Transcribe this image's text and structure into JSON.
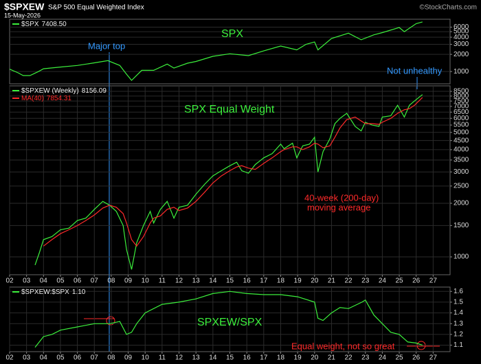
{
  "header": {
    "symbol": "$SPXEW",
    "name": "S&P 500 Equal Weighted Index",
    "date": "15-May-2026",
    "source": "©StockCharts.com"
  },
  "chart_data": [
    {
      "type": "line",
      "title": "SPX",
      "annotations": [
        "Major top",
        "Not unhealthy"
      ],
      "log_scale": true,
      "grid": true,
      "xlim": [
        2002,
        2028
      ],
      "ylim": [
        610,
        8250
      ],
      "yticks": [
        1000,
        2000,
        3000,
        4000,
        5000,
        6000
      ],
      "x": [
        2002,
        2002.5,
        2002.8,
        2003.2,
        2003.7,
        2004,
        2005,
        2006,
        2007,
        2007.8,
        2008.5,
        2008.9,
        2009.2,
        2009.8,
        2010.5,
        2011.3,
        2011.7,
        2012.5,
        2013,
        2014,
        2015,
        2016.1,
        2017,
        2018,
        2018.95,
        2019.5,
        2020,
        2020.2,
        2021,
        2022,
        2022.75,
        2023.5,
        2024,
        2025,
        2025.3,
        2026,
        2026.37
      ],
      "series": [
        {
          "name": "$SPX",
          "color": "#3cf03c",
          "values": [
            1100,
            950,
            850,
            850,
            1000,
            1120,
            1200,
            1280,
            1420,
            1550,
            1280,
            900,
            700,
            1050,
            1050,
            1350,
            1150,
            1400,
            1500,
            1850,
            2050,
            1900,
            2300,
            2800,
            2400,
            3000,
            3300,
            2400,
            3800,
            4700,
            3600,
            4400,
            4800,
            5900,
            5000,
            6900,
            7408.5
          ],
          "value_labels": [
            null,
            null,
            null,
            null,
            null,
            null,
            null,
            null,
            null,
            null,
            null,
            null,
            null,
            null,
            null,
            null,
            null,
            null,
            null,
            null,
            null,
            null,
            null,
            null,
            null,
            null,
            null,
            null,
            null,
            null,
            null,
            null,
            null,
            null,
            null,
            null,
            "7408.50"
          ]
        }
      ]
    },
    {
      "type": "line",
      "title": "SPX Equal Weight",
      "annotations": [
        "40-week (200-day)",
        "moving average"
      ],
      "log_scale": true,
      "grid": true,
      "xlim": [
        2002,
        2028
      ],
      "ylim": [
        794,
        9130
      ],
      "yticks": [
        1000,
        1500,
        2000,
        2500,
        3000,
        3500,
        4000,
        4500,
        5000,
        5500,
        6000,
        6500,
        7000,
        7500,
        8000,
        8500
      ],
      "xticks": [
        {
          "value": 2002,
          "label": "02"
        },
        {
          "value": 2003,
          "label": "03"
        },
        {
          "value": 2004,
          "label": "04"
        },
        {
          "value": 2005,
          "label": "05"
        },
        {
          "value": 2006,
          "label": "06"
        },
        {
          "value": 2007,
          "label": "07"
        },
        {
          "value": 2008,
          "label": "08"
        },
        {
          "value": 2009,
          "label": "09"
        },
        {
          "value": 2010,
          "label": "10"
        },
        {
          "value": 2011,
          "label": "11"
        },
        {
          "value": 2012,
          "label": "12"
        },
        {
          "value": 2013,
          "label": "13"
        },
        {
          "value": 2014,
          "label": "14"
        },
        {
          "value": 2015,
          "label": "15"
        },
        {
          "value": 2016,
          "label": "16"
        },
        {
          "value": 2017,
          "label": "17"
        },
        {
          "value": 2018,
          "label": "18"
        },
        {
          "value": 2019,
          "label": "19"
        },
        {
          "value": 2020,
          "label": "20"
        },
        {
          "value": 2021,
          "label": "21"
        },
        {
          "value": 2022,
          "label": "22"
        },
        {
          "value": 2023,
          "label": "23"
        },
        {
          "value": 2024,
          "label": "24"
        },
        {
          "value": 2025,
          "label": "25"
        },
        {
          "value": 2026,
          "label": "26"
        },
        {
          "value": 2027,
          "label": "27"
        }
      ],
      "x": [
        2003.5,
        2003.75,
        2004,
        2004.5,
        2005,
        2005.5,
        2006,
        2006.5,
        2007,
        2007.5,
        2007.9,
        2008.3,
        2008.7,
        2008.9,
        2009.2,
        2009.5,
        2009.9,
        2010.3,
        2010.5,
        2010.9,
        2011.3,
        2011.7,
        2012,
        2012.5,
        2013,
        2013.5,
        2014,
        2014.5,
        2015,
        2015.4,
        2015.7,
        2016.1,
        2016.5,
        2017,
        2017.5,
        2018,
        2018.2,
        2018.7,
        2018.95,
        2019.3,
        2019.7,
        2020,
        2020.2,
        2020.5,
        2020.9,
        2021.2,
        2021.5,
        2021.9,
        2022.4,
        2022.75,
        2023,
        2023.4,
        2023.8,
        2024,
        2024.5,
        2024.9,
        2025.3,
        2025.6,
        2025.9,
        2026.37
      ],
      "series": [
        {
          "name": "$SPXEW (Weekly)",
          "color": "#3cf03c",
          "values": [
            900,
            1050,
            1250,
            1300,
            1420,
            1450,
            1600,
            1650,
            1850,
            2050,
            1950,
            1800,
            1500,
            1100,
            850,
            1200,
            1500,
            1800,
            1550,
            1850,
            2050,
            1650,
            1900,
            1950,
            2250,
            2550,
            2850,
            3050,
            3250,
            3400,
            3050,
            2950,
            3300,
            3600,
            3800,
            4300,
            4050,
            4350,
            3600,
            4200,
            4300,
            4700,
            3000,
            3900,
            4600,
            5600,
            6000,
            6400,
            5400,
            5100,
            5700,
            5500,
            5400,
            6100,
            6200,
            7100,
            6100,
            7100,
            7500,
            8156.09
          ]
        },
        {
          "name": "MA(40)",
          "color": "#ff2a2a",
          "values": [
            null,
            null,
            1150,
            1250,
            1350,
            1420,
            1500,
            1600,
            1720,
            1880,
            1950,
            1900,
            1750,
            1550,
            1250,
            1150,
            1300,
            1550,
            1650,
            1700,
            1850,
            1900,
            1820,
            1880,
            2050,
            2300,
            2600,
            2850,
            3050,
            3200,
            3250,
            3150,
            3100,
            3350,
            3600,
            3900,
            4000,
            4150,
            4150,
            4000,
            4150,
            4350,
            4300,
            4100,
            4200,
            4700,
            5300,
            5900,
            6100,
            5800,
            5600,
            5600,
            5550,
            5700,
            6000,
            6400,
            6700,
            6800,
            7100,
            7854.31
          ]
        }
      ]
    },
    {
      "type": "line",
      "title": "SPXEW/SPX",
      "annotations": [
        "Equal weight, not so great"
      ],
      "log_scale": false,
      "grid": true,
      "xlim": [
        2002,
        2028
      ],
      "ylim": [
        1.04,
        1.64
      ],
      "yticks": [
        1.1,
        1.2,
        1.3,
        1.4,
        1.5,
        1.6
      ],
      "xticks": [
        {
          "value": 2002,
          "label": "02"
        },
        {
          "value": 2003,
          "label": "03"
        },
        {
          "value": 2004,
          "label": "04"
        },
        {
          "value": 2005,
          "label": "05"
        },
        {
          "value": 2006,
          "label": "06"
        },
        {
          "value": 2007,
          "label": "07"
        },
        {
          "value": 2008,
          "label": "08"
        },
        {
          "value": 2009,
          "label": "09"
        },
        {
          "value": 2010,
          "label": "10"
        },
        {
          "value": 2011,
          "label": "11"
        },
        {
          "value": 2012,
          "label": "12"
        },
        {
          "value": 2013,
          "label": "13"
        },
        {
          "value": 2014,
          "label": "14"
        },
        {
          "value": 2015,
          "label": "15"
        },
        {
          "value": 2016,
          "label": "16"
        },
        {
          "value": 2017,
          "label": "17"
        },
        {
          "value": 2018,
          "label": "18"
        },
        {
          "value": 2019,
          "label": "19"
        },
        {
          "value": 2020,
          "label": "20"
        },
        {
          "value": 2021,
          "label": "21"
        },
        {
          "value": 2022,
          "label": "22"
        },
        {
          "value": 2023,
          "label": "23"
        },
        {
          "value": 2024,
          "label": "24"
        },
        {
          "value": 2025,
          "label": "25"
        },
        {
          "value": 2026,
          "label": "26"
        },
        {
          "value": 2027,
          "label": "27"
        }
      ],
      "x": [
        2003.5,
        2004,
        2004.5,
        2005,
        2006,
        2007,
        2007.9,
        2008.5,
        2008.9,
        2009.2,
        2009.5,
        2010,
        2011,
        2012,
        2013,
        2014,
        2015,
        2016,
        2017,
        2018,
        2019,
        2020,
        2020.2,
        2020.5,
        2021,
        2021.5,
        2022,
        2022.8,
        2023,
        2023.5,
        2024,
        2024.5,
        2025,
        2025.5,
        2026,
        2026.37
      ],
      "series": [
        {
          "name": "$SPXEW:$SPX",
          "color": "#3cf03c",
          "values": [
            1.08,
            1.18,
            1.2,
            1.24,
            1.27,
            1.3,
            1.3,
            1.32,
            1.2,
            1.22,
            1.3,
            1.4,
            1.48,
            1.5,
            1.53,
            1.58,
            1.6,
            1.58,
            1.57,
            1.57,
            1.55,
            1.5,
            1.35,
            1.33,
            1.4,
            1.45,
            1.44,
            1.5,
            1.52,
            1.38,
            1.3,
            1.22,
            1.2,
            1.13,
            1.12,
            1.1
          ],
          "value_labels": [
            null,
            null,
            null,
            null,
            null,
            null,
            null,
            null,
            null,
            null,
            null,
            null,
            null,
            null,
            null,
            null,
            null,
            null,
            null,
            null,
            null,
            null,
            null,
            null,
            null,
            null,
            null,
            null,
            null,
            null,
            null,
            null,
            null,
            null,
            null,
            "1.10"
          ]
        }
      ]
    }
  ]
}
